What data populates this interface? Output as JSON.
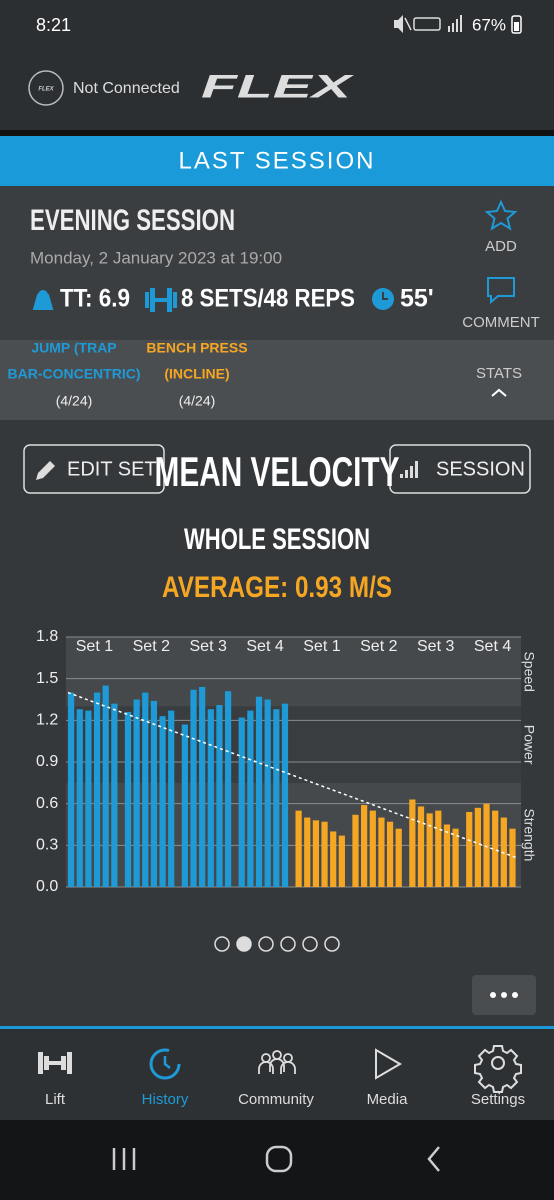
{
  "status_bar": {
    "time": "8:21",
    "battery": "67%"
  },
  "header": {
    "connection": "Not Connected",
    "logo": "FLEX"
  },
  "banner": "LAST SESSION",
  "session": {
    "title": "EVENING SESSION",
    "date": "Monday, 2 January 2023 at 19:00",
    "tt": "TT: 6.9",
    "sets": "8 SETS/48 REPS",
    "duration": "55'",
    "actions": [
      "ADD",
      "COMMENT"
    ]
  },
  "exercises": [
    {
      "name_lines": [
        "JUMP (TRAP",
        "BAR-CONCENTRIC)"
      ],
      "count": "(4/24)"
    },
    {
      "name_lines": [
        "BENCH PRESS",
        "(INCLINE)"
      ],
      "count": "(4/24)"
    }
  ],
  "stats": "STATS",
  "buttons": {
    "edit": "EDIT SET",
    "session": "SESSION"
  },
  "chart_data": {
    "type": "bar",
    "title": "MEAN VELOCITY",
    "subtitle": "WHOLE SESSION",
    "annotation": "AVERAGE: 0.93 M/S",
    "ylim": [
      0,
      1.8
    ],
    "yticks": [
      {
        "value": 0,
        "label": "0.0"
      },
      0.3,
      0.6,
      0.9,
      1.2,
      1.5,
      1.8
    ],
    "grid": true,
    "zones": [
      {
        "label": "Speed",
        "range": [
          1.3,
          1.8
        ]
      },
      {
        "label": "Power",
        "range": [
          0.75,
          1.3
        ]
      },
      {
        "label": "Strength",
        "range": [
          0,
          0.75
        ]
      }
    ],
    "series": [
      {
        "name": "Set 1",
        "color": "#1e9ad6",
        "values": [
          1.4,
          1.28,
          1.27,
          1.4,
          1.45,
          1.32
        ]
      },
      {
        "name": "Set 2",
        "color": "#1e9ad6",
        "values": [
          1.26,
          1.35,
          1.4,
          1.34,
          1.23,
          1.27
        ]
      },
      {
        "name": "Set 3",
        "color": "#1e9ad6",
        "values": [
          1.17,
          1.42,
          1.44,
          1.28,
          1.31,
          1.41
        ]
      },
      {
        "name": "Set 4",
        "color": "#1e9ad6",
        "values": [
          1.22,
          1.27,
          1.37,
          1.35,
          1.28,
          1.32
        ]
      },
      {
        "name": "Set 1",
        "color": "#f5a623",
        "values": [
          0.55,
          0.5,
          0.48,
          0.47,
          0.4,
          0.37
        ]
      },
      {
        "name": "Set 2",
        "color": "#f5a623",
        "values": [
          0.52,
          0.59,
          0.55,
          0.5,
          0.47,
          0.42
        ]
      },
      {
        "name": "Set 3",
        "color": "#f5a623",
        "values": [
          0.63,
          0.58,
          0.53,
          0.55,
          0.45,
          0.42
        ]
      },
      {
        "name": "Set 4",
        "color": "#f5a623",
        "values": [
          0.54,
          0.57,
          0.6,
          0.55,
          0.5,
          0.42
        ]
      }
    ],
    "trend": [
      1.4,
      0.21
    ]
  },
  "nav": [
    "Lift",
    "History",
    "Community",
    "Media",
    "Settings"
  ]
}
